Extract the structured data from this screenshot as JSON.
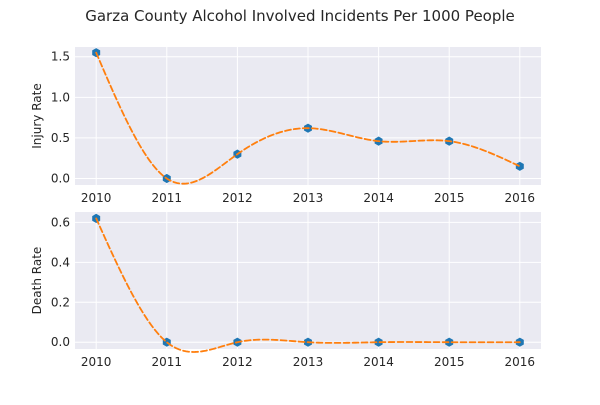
{
  "chart_data": {
    "title": "Garza County Alcohol Involved Incidents Per 1000 People",
    "style": {
      "panel_background": "#eaeaf2",
      "grid_color": "#ffffff",
      "marker_color": "#1f77b4",
      "curve_color": "#ff7f0e",
      "curve_style": "dashed"
    },
    "charts": [
      {
        "type": "line",
        "xlabel": "",
        "ylabel": "Injury Rate",
        "x": [
          2010,
          2011,
          2012,
          2013,
          2014,
          2015,
          2016
        ],
        "y": [
          1.55,
          0.0,
          0.3,
          0.62,
          0.46,
          0.46,
          0.15
        ],
        "xlim": [
          2009.7,
          2016.3
        ],
        "ylim": [
          -0.08,
          1.62
        ],
        "yticks": [
          0.0,
          0.5,
          1.0,
          1.5
        ],
        "ytick_labels": [
          "0.0",
          "0.5",
          "1.0",
          "1.5"
        ],
        "xticks": [
          2010,
          2011,
          2012,
          2013,
          2014,
          2015,
          2016
        ],
        "xtick_labels": [
          "2010",
          "2011",
          "2012",
          "2013",
          "2014",
          "2015",
          "2016"
        ],
        "grid": true
      },
      {
        "type": "line",
        "xlabel": "",
        "ylabel": "Death Rate",
        "x": [
          2010,
          2011,
          2012,
          2013,
          2014,
          2015,
          2016
        ],
        "y": [
          0.62,
          0.0,
          0.0,
          0.0,
          0.0,
          0.0,
          0.0
        ],
        "xlim": [
          2009.7,
          2016.3
        ],
        "ylim": [
          -0.034,
          0.652
        ],
        "yticks": [
          0.0,
          0.2,
          0.4,
          0.6
        ],
        "ytick_labels": [
          "0.0",
          "0.2",
          "0.4",
          "0.6"
        ],
        "xticks": [
          2010,
          2011,
          2012,
          2013,
          2014,
          2015,
          2016
        ],
        "xtick_labels": [
          "2010",
          "2011",
          "2012",
          "2013",
          "2014",
          "2015",
          "2016"
        ],
        "grid": true
      }
    ]
  }
}
